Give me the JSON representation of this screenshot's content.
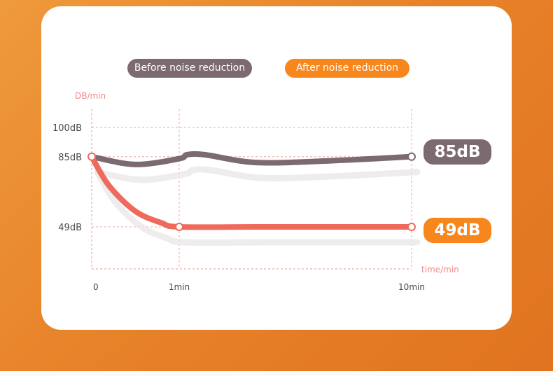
{
  "legend": {
    "before_label": "Before noise reduction",
    "after_label": "After noise reduction"
  },
  "badges": {
    "before_value": "85dB",
    "after_value": "49dB"
  },
  "colors": {
    "before": "#7b6a70",
    "after": "#f7861c",
    "after_line": "#ef6a5c",
    "axis": "#f2a7a7",
    "background": "#e8832a"
  },
  "chart_data": {
    "type": "line",
    "title": "",
    "ylabel": "DB/min",
    "xlabel": "time/min",
    "y_ticks": [
      {
        "value": 100,
        "label": "100dB"
      },
      {
        "value": 85,
        "label": "85dB"
      },
      {
        "value": 49,
        "label": "49dB"
      }
    ],
    "x_ticks": [
      {
        "value": 0,
        "label": "0"
      },
      {
        "value": 1,
        "label": "1min"
      },
      {
        "value": 10,
        "label": "10min"
      }
    ],
    "series": [
      {
        "name": "Before noise reduction",
        "points": [
          [
            0,
            85
          ],
          [
            0.5,
            81
          ],
          [
            1,
            84
          ],
          [
            1.3,
            86
          ],
          [
            2,
            86
          ],
          [
            4,
            82
          ],
          [
            7,
            83
          ],
          [
            10,
            85
          ]
        ]
      },
      {
        "name": "After noise reduction",
        "points": [
          [
            0,
            85
          ],
          [
            0.2,
            70
          ],
          [
            0.5,
            57
          ],
          [
            0.8,
            51
          ],
          [
            1,
            49
          ],
          [
            4,
            49
          ],
          [
            7,
            49
          ],
          [
            10,
            49
          ]
        ]
      }
    ],
    "markers": [
      {
        "series": 0,
        "x": 10,
        "y": 85
      },
      {
        "series": 1,
        "x": 0,
        "y": 85
      },
      {
        "series": 1,
        "x": 1,
        "y": 49
      },
      {
        "series": 1,
        "x": 10,
        "y": 49
      }
    ]
  }
}
